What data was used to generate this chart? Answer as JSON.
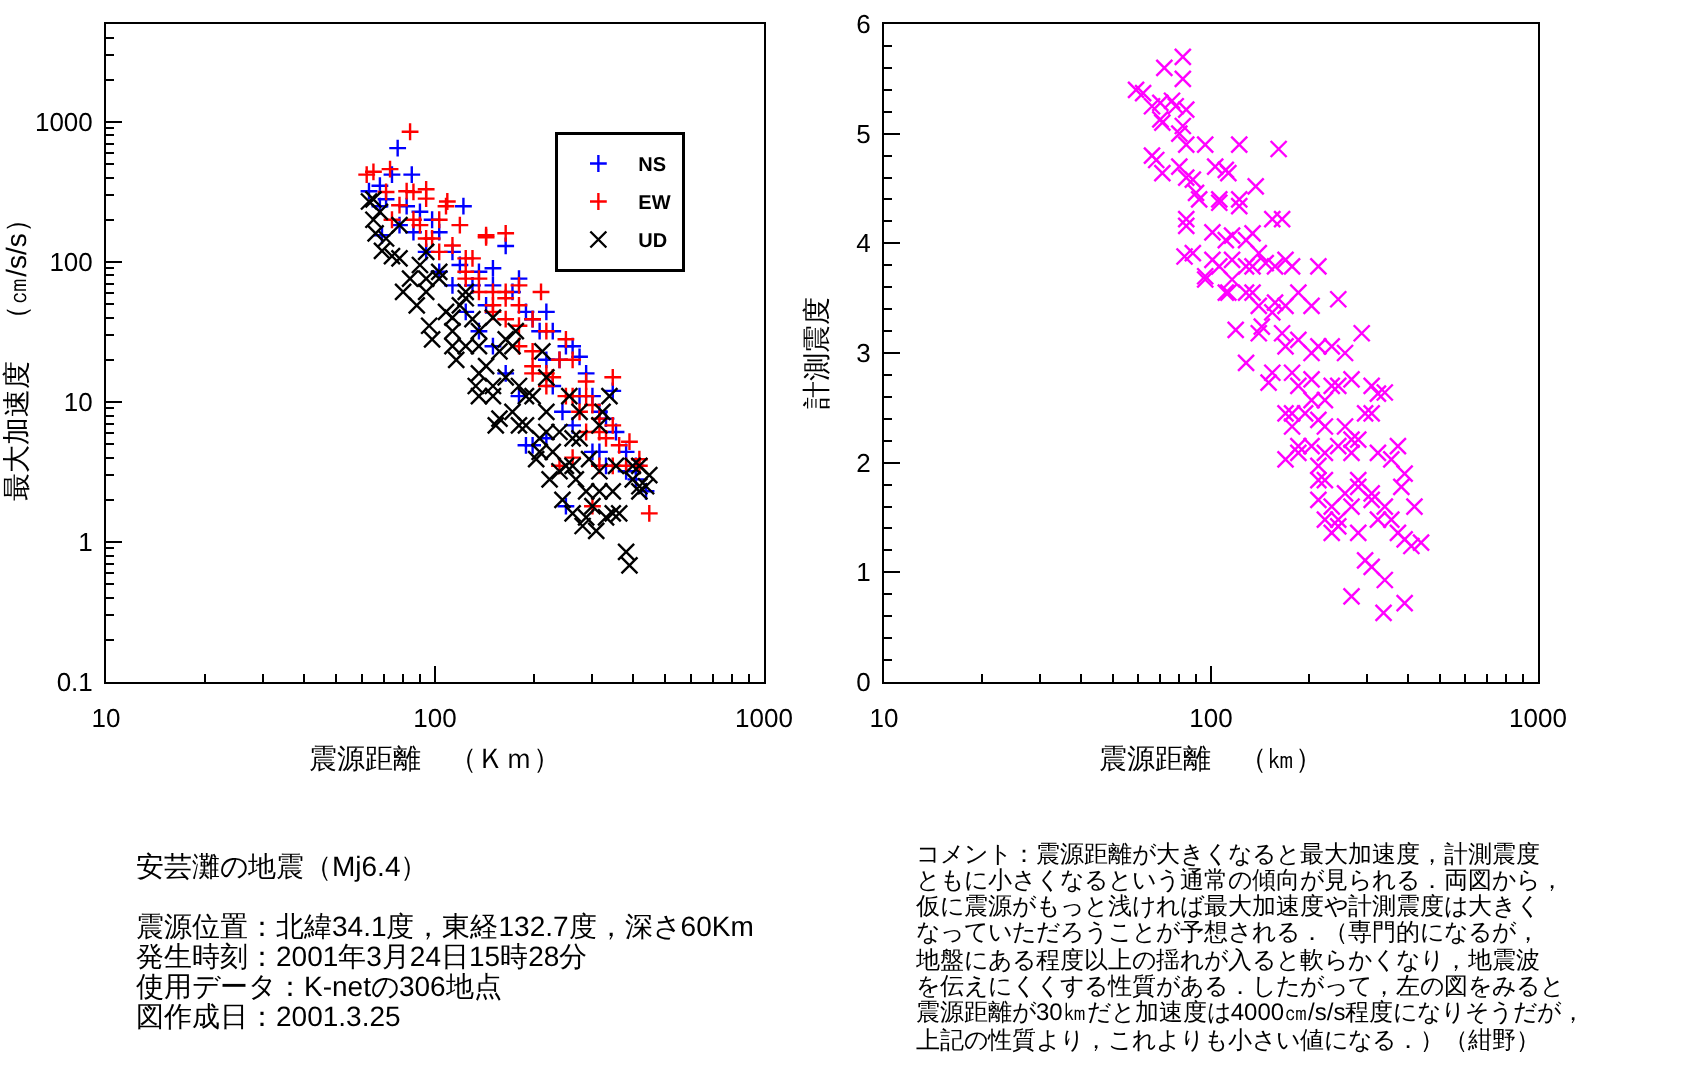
{
  "chart_data": [
    {
      "type": "scatter",
      "xlabel": "震源距離　（Ｋｍ）",
      "ylabel": "最大加速度　（㎝/s/s）",
      "log": "xy",
      "legend": "top right",
      "xlim": [
        10,
        1000
      ],
      "xticks": [
        10,
        {
          "value": 20,
          "label": null
        },
        {
          "value": 30,
          "label": null
        },
        {
          "value": 40,
          "label": null
        },
        {
          "value": 50,
          "label": null
        },
        {
          "value": 60,
          "label": null
        },
        {
          "value": 70,
          "label": null
        },
        {
          "value": 80,
          "label": null
        },
        {
          "value": 90,
          "label": null
        },
        100,
        {
          "value": 200,
          "label": null
        },
        {
          "value": 300,
          "label": null
        },
        {
          "value": 400,
          "label": null
        },
        {
          "value": 500,
          "label": null
        },
        {
          "value": 600,
          "label": null
        },
        {
          "value": 700,
          "label": null
        },
        {
          "value": 800,
          "label": null
        },
        {
          "value": 900,
          "label": null
        },
        1000
      ],
      "ylim": [
        0.1,
        5000
      ],
      "yticks": [
        0.1,
        {
          "value": 0.2,
          "label": null
        },
        {
          "value": 0.3,
          "label": null
        },
        {
          "value": 0.4,
          "label": null
        },
        {
          "value": 0.5,
          "label": null
        },
        {
          "value": 0.6,
          "label": null
        },
        {
          "value": 0.7,
          "label": null
        },
        {
          "value": 0.8,
          "label": null
        },
        {
          "value": 0.9,
          "label": null
        },
        1,
        {
          "value": 2,
          "label": null
        },
        {
          "value": 3,
          "label": null
        },
        {
          "value": 4,
          "label": null
        },
        {
          "value": 5,
          "label": null
        },
        {
          "value": 6,
          "label": null
        },
        {
          "value": 7,
          "label": null
        },
        {
          "value": 8,
          "label": null
        },
        {
          "value": 9,
          "label": null
        },
        10,
        {
          "value": 20,
          "label": null
        },
        {
          "value": 30,
          "label": null
        },
        {
          "value": 40,
          "label": null
        },
        {
          "value": 50,
          "label": null
        },
        {
          "value": 60,
          "label": null
        },
        {
          "value": 70,
          "label": null
        },
        {
          "value": 80,
          "label": null
        },
        {
          "value": 90,
          "label": null
        },
        100,
        {
          "value": 200,
          "label": null
        },
        {
          "value": 300,
          "label": null
        },
        {
          "value": 400,
          "label": null
        },
        {
          "value": 500,
          "label": null
        },
        {
          "value": 600,
          "label": null
        },
        {
          "value": 700,
          "label": null
        },
        {
          "value": 800,
          "label": null
        },
        {
          "value": 900,
          "label": null
        },
        1000,
        {
          "value": 2000,
          "label": null
        },
        {
          "value": 3000,
          "label": null
        },
        {
          "value": 4000,
          "label": null
        }
      ],
      "annotations": [
        "安芸灘の地震（Mj6.4）",
        "震源位置：北緯34.1度，東経132.7度，深さ60Km",
        "発生時刻：2001年3月24日15時28分",
        "使用データ：K-netの306地点",
        "図作成日：2001.3.25"
      ],
      "series": [
        {
          "name": "NS",
          "color": "#0000ff",
          "marker": "cross",
          "x": [
            77,
            63,
            68,
            74,
            69,
            85,
            82,
            90,
            98,
            103,
            113,
            122,
            119,
            130,
            136,
            143,
            150,
            164,
            172,
            180,
            189,
            198,
            208,
            218,
            228,
            239,
            250,
            262,
            275,
            288,
            301,
            316,
            331,
            347,
            355,
            381,
            408,
            438,
            408,
            262,
            250,
            218,
            198,
            180,
            164,
            150,
            136,
            124,
            113,
            103,
            94,
            86,
            78,
            71,
            301,
            331,
            275,
            228,
            244,
            189,
            218,
            150,
            68,
            316,
            381
          ],
          "values": [
            650,
            320,
            250,
            420,
            155,
            420,
            250,
            228,
            200,
            163,
            118,
            250,
            95,
            68,
            85,
            49,
            90,
            130,
            61,
            76,
            44,
            39,
            32,
            44,
            32,
            20,
            25,
            25,
            21,
            16,
            11,
            8.5,
            7.6,
            12,
            6.1,
            4.4,
            3.5,
            2.3,
            2.8,
            6.8,
            1.8,
            5.5,
            4.9,
            11,
            16,
            25,
            32,
            44,
            68,
            85,
            118,
            163,
            183,
            280,
            4.4,
            3.5,
            11,
            13,
            8.5,
            4.9,
            20,
            68,
            350,
            4.4,
            3.2
          ]
        },
        {
          "name": "EW",
          "color": "#ff0000",
          "marker": "cross",
          "x": [
            84,
            62,
            65,
            73,
            82,
            94,
            103,
            109,
            119,
            130,
            143,
            164,
            150,
            180,
            210,
            198,
            218,
            239,
            250,
            262,
            288,
            301,
            347,
            316,
            331,
            363,
            390,
            418,
            448,
            418,
            381,
            275,
            250,
            228,
            198,
            180,
            164,
            150,
            136,
            124,
            113,
            103,
            94,
            86,
            78,
            71,
            86,
            98,
            124,
            136,
            164,
            180,
            198,
            218,
            262,
            288,
            316,
            239,
            347,
            301,
            94,
            108,
            143,
            164,
            180,
            316,
            288,
            218,
            198,
            150,
            124,
            90,
            74,
            347,
            262
          ],
          "values": [
            850,
            420,
            440,
            460,
            320,
            283,
            200,
            270,
            183,
            106,
            155,
            160,
            61,
            68,
            61,
            39,
            32,
            20,
            28,
            20,
            14,
            9.5,
            15,
            6.1,
            5.5,
            4.9,
            5.2,
            3.9,
            1.6,
            3.5,
            3.5,
            8.5,
            11,
            15,
            16,
            25,
            39,
            49,
            76,
            106,
            131,
            118,
            147,
            200,
            254,
            316,
            316,
            147,
            76,
            61,
            55,
            49,
            23,
            16,
            11,
            6.1,
            3.5,
            3.5,
            6.8,
            1.8,
            330,
            250,
            150,
            61,
            35,
            7.6,
            11,
            13,
            18,
            44,
            85,
            183,
            200,
            3.5,
            4.0
          ]
        },
        {
          "name": "UD",
          "color": "#000000",
          "marker": "x",
          "x": [
            63,
            65,
            66,
            69,
            71,
            74,
            78,
            80,
            84,
            88,
            90,
            94,
            96,
            98,
            103,
            108,
            113,
            116,
            119,
            124,
            130,
            133,
            136,
            143,
            150,
            153,
            157,
            164,
            172,
            176,
            180,
            189,
            198,
            203,
            208,
            212,
            218,
            223,
            228,
            239,
            244,
            250,
            256,
            262,
            268,
            275,
            281,
            288,
            294,
            301,
            309,
            316,
            323,
            331,
            339,
            347,
            355,
            363,
            381,
            390,
            399,
            418,
            438,
            448,
            418,
            65,
            78,
            94,
            124,
            164,
            218,
            275,
            316,
            180,
            150,
            136,
            113,
            94,
            113,
            136,
            189,
            218,
            262,
            316,
            418,
            172,
            150,
            124,
            103,
            68,
            239,
            288,
            347,
            208,
            157,
            136,
            262,
            399
          ],
          "values": [
            270,
            200,
            160,
            120,
            147,
            110,
            106,
            61,
            76,
            49,
            95,
            61,
            35,
            28,
            76,
            44,
            32,
            20,
            49,
            25,
            39,
            13,
            32,
            18,
            11,
            6.8,
            23,
            15,
            8.5,
            32,
            13,
            6.8,
            11,
            3.9,
            5.5,
            23,
            8.5,
            2.8,
            4.4,
            6.1,
            2.0,
            3.5,
            11,
            1.6,
            2.8,
            5.5,
            1.3,
            2.3,
            3.9,
            1.8,
            1.2,
            3.2,
            8.5,
            1.5,
            11,
            2.3,
            3.5,
            1.6,
            0.85,
            0.68,
            2.8,
            2.3,
            2.5,
            3.0,
            3.5,
            280,
            183,
            118,
            55,
            28,
            15,
            8.5,
            6.8,
            6.8,
            13,
            16,
            25,
            76,
            40,
            25,
            11,
            6.1,
            3.5,
            2.3,
            2.5,
            25,
            40,
            61,
            85,
            228,
            3.2,
            1.5,
            1.6,
            4.4,
            7.6,
            11,
            5.5,
            3.5
          ]
        }
      ]
    },
    {
      "type": "scatter",
      "xlabel": "震源距離　（㎞）",
      "ylabel": "計測震度",
      "log": "x",
      "xlim": [
        10,
        1000
      ],
      "xticks": [
        10,
        {
          "value": 20,
          "label": null
        },
        {
          "value": 30,
          "label": null
        },
        {
          "value": 40,
          "label": null
        },
        {
          "value": 50,
          "label": null
        },
        {
          "value": 60,
          "label": null
        },
        {
          "value": 70,
          "label": null
        },
        {
          "value": 80,
          "label": null
        },
        {
          "value": 90,
          "label": null
        },
        100,
        {
          "value": 200,
          "label": null
        },
        {
          "value": 300,
          "label": null
        },
        {
          "value": 400,
          "label": null
        },
        {
          "value": 500,
          "label": null
        },
        {
          "value": 600,
          "label": null
        },
        {
          "value": 700,
          "label": null
        },
        {
          "value": 800,
          "label": null
        },
        {
          "value": 900,
          "label": null
        },
        1000
      ],
      "ylim": [
        0,
        6
      ],
      "yticks": [
        0,
        {
          "value": 0.2,
          "label": null
        },
        {
          "value": 0.4,
          "label": null
        },
        {
          "value": 0.6,
          "label": null
        },
        {
          "value": 0.8,
          "label": null
        },
        1,
        {
          "value": 1.2,
          "label": null
        },
        {
          "value": 1.4,
          "label": null
        },
        {
          "value": 1.6,
          "label": null
        },
        {
          "value": 1.8,
          "label": null
        },
        2,
        {
          "value": 2.2,
          "label": null
        },
        {
          "value": 2.4,
          "label": null
        },
        {
          "value": 2.6,
          "label": null
        },
        {
          "value": 2.8,
          "label": null
        },
        3,
        {
          "value": 3.2,
          "label": null
        },
        {
          "value": 3.4,
          "label": null
        },
        {
          "value": 3.6,
          "label": null
        },
        {
          "value": 3.8,
          "label": null
        },
        4,
        {
          "value": 4.2,
          "label": null
        },
        {
          "value": 4.4,
          "label": null
        },
        {
          "value": 4.6,
          "label": null
        },
        {
          "value": 4.8,
          "label": null
        },
        5,
        {
          "value": 5.2,
          "label": null
        },
        {
          "value": 5.4,
          "label": null
        },
        {
          "value": 5.6,
          "label": null
        },
        {
          "value": 5.8,
          "label": null
        },
        6
      ],
      "annotations": [
        "コメント：震源距離が大きくなると最大加速度，計測震度",
        "ともに小さくなるという通常の傾向が見られる．両図から，",
        "仮に震源がもっと浅ければ最大加速度や計測震度は大きく",
        "なっていただろうことが予想される．（専門的になるが，",
        "地盤にある程度以上の揺れが入ると軟らかくなり，地震波",
        "を伝えにくくする性質がある．したがって，左の図をみると",
        "震源距離が30㎞だと加速度は4000㎝/s/s程度になりそうだが，",
        "上記の性質より，これよりも小さい値になる．）（紺野）"
      ],
      "series": [
        {
          "color": "#ff00ff",
          "marker": "x",
          "x": [
            62,
            72,
            82,
            76,
            66,
            71,
            82,
            80,
            68,
            71,
            84,
            96,
            122,
            161,
            103,
            113,
            84,
            90,
            106,
            122,
            137,
            84,
            83,
            96,
            101,
            111,
            128,
            154,
            140,
            128,
            116,
            111,
            157,
            169,
            213,
            245,
            203,
            185,
            169,
            154,
            140,
            119,
            128,
            154,
            169,
            185,
            203,
            234,
            289,
            257,
            150,
            185,
            203,
            169,
            223,
            245,
            269,
            310,
            340,
            223,
            257,
            296,
            185,
            203,
            245,
            269,
            324,
            356,
            223,
            213,
            257,
            282,
            310,
            340,
            391,
            382,
            419,
            245,
            282,
            324,
            373,
            410,
            439,
            296,
            340,
            269,
            337,
            391,
            234,
            223,
            213,
            282,
            234,
            194,
            177,
            169,
            88,
            106,
            128,
            140,
            80,
            59,
            70,
            78,
            84,
            70,
            82,
            66,
            88,
            111,
            92,
            106,
            122,
            84,
            116,
            134,
            165,
            101,
            116,
            134,
            147,
            177,
            96,
            113,
            134,
            157,
            143,
            165,
            213,
            177,
            203,
            324,
            177,
            213,
            310,
            185,
            223,
            269,
            373,
            213,
            282,
            234,
            269,
            310,
            356,
            245,
            391,
            310
          ],
          "values": [
            5.37,
            5.6,
            5.7,
            5.3,
            5.25,
            5.1,
            5.5,
            5.0,
            4.76,
            4.64,
            4.9,
            4.9,
            4.9,
            4.86,
            4.7,
            4.64,
            4.6,
            4.46,
            4.4,
            4.4,
            4.52,
            4.16,
            3.88,
            3.67,
            4.1,
            4.03,
            4.03,
            4.22,
            3.91,
            3.79,
            3.67,
            3.55,
            3.79,
            3.85,
            3.79,
            3.49,
            3.43,
            3.55,
            3.43,
            3.37,
            3.18,
            3.21,
            2.91,
            2.82,
            3.06,
            3.12,
            3.0,
            3.06,
            3.18,
            3.0,
            2.73,
            2.7,
            2.57,
            2.45,
            2.57,
            2.7,
            2.76,
            2.7,
            2.64,
            2.33,
            2.33,
            2.45,
            2.09,
            2.15,
            2.15,
            2.09,
            2.09,
            2.03,
            1.84,
            1.66,
            1.72,
            1.84,
            1.72,
            1.6,
            1.9,
            1.78,
            1.6,
            1.48,
            1.36,
            1.48,
            1.36,
            1.24,
            1.27,
            1.11,
            0.93,
            0.78,
            0.63,
            0.72,
            1.36,
            1.48,
            1.97,
            2.21,
            2.7,
            2.45,
            2.33,
            2.03,
            3.91,
            3.79,
            3.55,
            3.43,
            4.7,
            5.4,
            5.28,
            5.25,
            5.22,
            5.13,
            5.07,
            4.8,
            4.58,
            4.67,
            4.4,
            4.37,
            4.34,
            4.22,
            4.07,
            4.09,
            4.22,
            3.85,
            3.85,
            3.79,
            3.82,
            3.79,
            3.7,
            3.55,
            3.55,
            3.46,
            3.24,
            3.18,
            3.06,
            2.82,
            2.76,
            2.63,
            2.45,
            2.39,
            2.45,
            2.15,
            2.09,
            2.21,
            2.15,
            1.84,
            1.78,
            1.6,
            1.6,
            1.66,
            1.48,
            1.42,
            1.3,
            1.05
          ]
        }
      ]
    }
  ]
}
